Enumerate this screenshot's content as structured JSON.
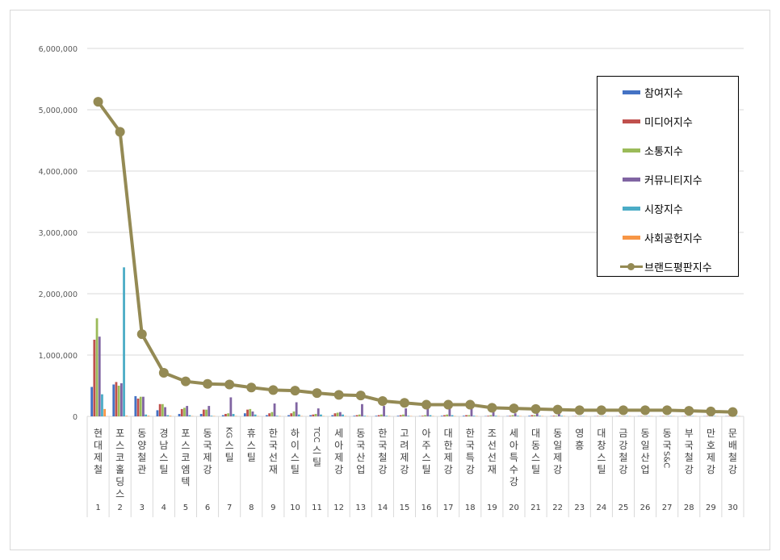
{
  "chart_data": {
    "type": "bar",
    "categories": [
      "현대제철",
      "포스코홀딩스",
      "동양철관",
      "경남스틸",
      "포스코엠텍",
      "동국제강",
      "KG스틸",
      "휴스틸",
      "한국선재",
      "하이스틸",
      "TCC스틸",
      "세아제강",
      "동국산업",
      "한국철강",
      "고려제강",
      "아주스틸",
      "대한제강",
      "한국특강",
      "조선선재",
      "세아특수강",
      "대동스틸",
      "동일제강",
      "영흥",
      "대창스틸",
      "금강철강",
      "동일산업",
      "동국S&C",
      "부국철강",
      "만호제강",
      "문배철강"
    ],
    "ranks": [
      "1",
      "2",
      "3",
      "4",
      "5",
      "6",
      "7",
      "8",
      "9",
      "10",
      "11",
      "12",
      "13",
      "14",
      "15",
      "16",
      "17",
      "18",
      "19",
      "20",
      "21",
      "22",
      "23",
      "24",
      "25",
      "26",
      "27",
      "28",
      "29",
      "30"
    ],
    "ylim": [
      0,
      6000000
    ],
    "yticks": [
      "0",
      "1,000,000",
      "2,000,000",
      "3,000,000",
      "4,000,000",
      "5,000,000",
      "6,000,000"
    ],
    "yticks_values": [
      0,
      1000000,
      2000000,
      3000000,
      4000000,
      5000000,
      6000000
    ],
    "legend_position": "top-right",
    "grid": true,
    "series": [
      {
        "name": "참여지수",
        "color": "#4472c4",
        "kind": "bar",
        "values": [
          480000,
          520000,
          330000,
          100000,
          40000,
          40000,
          20000,
          50000,
          20000,
          20000,
          20000,
          20000,
          10000,
          10000,
          10000,
          5000,
          10000,
          10000,
          5000,
          5000,
          10000,
          5000,
          3000,
          3000,
          3000,
          3000,
          3000,
          3000,
          3000,
          3000
        ]
      },
      {
        "name": "미디어지수",
        "color": "#c0504d",
        "kind": "bar",
        "values": [
          1250000,
          560000,
          290000,
          200000,
          120000,
          110000,
          40000,
          110000,
          50000,
          50000,
          30000,
          50000,
          20000,
          20000,
          20000,
          10000,
          20000,
          20000,
          10000,
          10000,
          20000,
          10000,
          5000,
          5000,
          5000,
          5000,
          5000,
          5000,
          5000,
          5000
        ]
      },
      {
        "name": "소통지수",
        "color": "#9bbb59",
        "kind": "bar",
        "values": [
          1600000,
          500000,
          320000,
          200000,
          140000,
          110000,
          50000,
          120000,
          70000,
          80000,
          40000,
          60000,
          30000,
          30000,
          30000,
          20000,
          30000,
          20000,
          20000,
          20000,
          20000,
          10000,
          5000,
          5000,
          5000,
          5000,
          5000,
          5000,
          5000,
          5000
        ]
      },
      {
        "name": "커뮤니티지수",
        "color": "#8064a2",
        "kind": "bar",
        "values": [
          1300000,
          540000,
          320000,
          150000,
          170000,
          170000,
          310000,
          80000,
          210000,
          230000,
          130000,
          70000,
          200000,
          170000,
          130000,
          130000,
          130000,
          140000,
          90000,
          50000,
          90000,
          60000,
          5000,
          5000,
          5000,
          5000,
          5000,
          5000,
          5000,
          5000
        ]
      },
      {
        "name": "시장지수",
        "color": "#4bacc6",
        "kind": "bar",
        "values": [
          360000,
          2430000,
          30000,
          20000,
          20000,
          10000,
          40000,
          30000,
          10000,
          30000,
          30000,
          30000,
          10000,
          10000,
          10000,
          20000,
          20000,
          10000,
          10000,
          10000,
          10000,
          10000,
          5000,
          5000,
          5000,
          5000,
          5000,
          5000,
          5000,
          5000
        ]
      },
      {
        "name": "사회공헌지수",
        "color": "#f79646",
        "kind": "bar",
        "values": [
          120000,
          10000,
          10000,
          10000,
          5000,
          5000,
          5000,
          5000,
          5000,
          5000,
          5000,
          5000,
          5000,
          5000,
          5000,
          5000,
          5000,
          5000,
          5000,
          5000,
          5000,
          5000,
          3000,
          3000,
          3000,
          3000,
          3000,
          3000,
          3000,
          3000
        ]
      },
      {
        "name": "브랜드평판지수",
        "color": "#948a54",
        "kind": "line",
        "values": [
          5130000,
          4640000,
          1340000,
          710000,
          570000,
          530000,
          520000,
          470000,
          430000,
          420000,
          380000,
          350000,
          340000,
          250000,
          220000,
          190000,
          190000,
          190000,
          140000,
          130000,
          120000,
          110000,
          100000,
          100000,
          100000,
          100000,
          100000,
          90000,
          80000,
          70000
        ]
      }
    ]
  }
}
